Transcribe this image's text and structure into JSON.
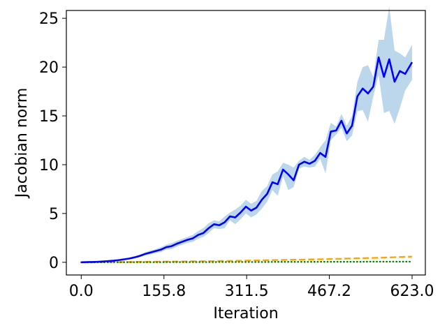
{
  "chart_data": {
    "type": "line",
    "title": "",
    "xlabel": "Iteration",
    "ylabel": "Jacobian norm",
    "xlim": [
      -28,
      648
    ],
    "ylim": [
      -1.3,
      25.8
    ],
    "grid": false,
    "legend": "none",
    "xticks": [
      0.0,
      155.8,
      311.5,
      467.2,
      623.0
    ],
    "xtick_labels": [
      "0.0",
      "155.8",
      "311.5",
      "467.2",
      "623.0"
    ],
    "yticks": [
      0,
      5,
      10,
      15,
      20,
      25
    ],
    "ytick_labels": [
      "0",
      "5",
      "10",
      "15",
      "20",
      "25"
    ],
    "x": [
      0,
      10,
      20,
      30,
      40,
      50,
      60,
      70,
      80,
      90,
      100,
      110,
      120,
      130,
      140,
      150,
      160,
      170,
      180,
      190,
      200,
      210,
      220,
      230,
      240,
      250,
      260,
      270,
      280,
      290,
      300,
      310,
      320,
      330,
      340,
      350,
      360,
      370,
      380,
      390,
      400,
      410,
      420,
      430,
      440,
      450,
      460,
      470,
      480,
      490,
      500,
      510,
      520,
      530,
      540,
      550,
      560,
      570,
      580,
      590,
      600,
      610,
      623
    ],
    "series": [
      {
        "color": "#0000ff",
        "style": "solid",
        "values": [
          0.0,
          0.02,
          0.03,
          0.05,
          0.08,
          0.12,
          0.16,
          0.22,
          0.3,
          0.38,
          0.5,
          0.65,
          0.85,
          1.0,
          1.15,
          1.3,
          1.55,
          1.65,
          1.9,
          2.1,
          2.3,
          2.45,
          2.8,
          3.0,
          3.5,
          3.9,
          3.8,
          4.1,
          4.7,
          4.6,
          5.1,
          5.7,
          5.3,
          5.6,
          6.4,
          7.0,
          8.2,
          8.0,
          9.5,
          9.0,
          8.4,
          10.0,
          10.3,
          10.1,
          10.4,
          11.2,
          10.8,
          13.4,
          13.5,
          14.5,
          13.2,
          14.0,
          17.0,
          17.8,
          17.3,
          18.0,
          21.0,
          19.0,
          20.8,
          18.5,
          19.6,
          19.3,
          20.5
        ],
        "band_upper": [
          0.0,
          0.03,
          0.05,
          0.07,
          0.1,
          0.15,
          0.2,
          0.27,
          0.36,
          0.45,
          0.6,
          0.78,
          1.0,
          1.2,
          1.35,
          1.55,
          1.8,
          1.95,
          2.2,
          2.4,
          2.6,
          2.8,
          3.2,
          3.5,
          4.0,
          4.3,
          4.2,
          4.7,
          5.1,
          5.4,
          5.8,
          6.4,
          6.0,
          6.3,
          7.3,
          7.8,
          9.0,
          9.3,
          10.2,
          10.0,
          9.7,
          10.4,
          10.8,
          10.5,
          11.0,
          11.8,
          12.5,
          14.3,
          13.9,
          15.2,
          14.0,
          15.0,
          18.5,
          20.0,
          20.2,
          19.0,
          22.8,
          22.8,
          26.2,
          21.7,
          21.4,
          21.0,
          22.3
        ],
        "band_lower": [
          0.0,
          0.01,
          0.01,
          0.03,
          0.06,
          0.09,
          0.12,
          0.17,
          0.24,
          0.31,
          0.4,
          0.52,
          0.7,
          0.8,
          0.95,
          1.05,
          1.3,
          1.35,
          1.6,
          1.8,
          2.0,
          2.1,
          2.4,
          2.6,
          3.0,
          3.5,
          3.4,
          3.5,
          4.3,
          3.9,
          4.4,
          5.0,
          4.6,
          4.9,
          5.5,
          6.2,
          7.4,
          6.8,
          8.8,
          7.4,
          7.7,
          9.6,
          9.8,
          9.7,
          9.8,
          10.6,
          9.1,
          12.5,
          13.1,
          13.8,
          12.4,
          13.0,
          15.5,
          15.6,
          14.4,
          17.0,
          19.2,
          15.3,
          15.5,
          14.2,
          15.8,
          17.6,
          18.7
        ]
      },
      {
        "color": "#ffa500",
        "style": "dashed",
        "values": [
          0.0,
          0.0,
          0.0,
          0.01,
          0.01,
          0.02,
          0.02,
          0.02,
          0.03,
          0.03,
          0.04,
          0.04,
          0.05,
          0.05,
          0.06,
          0.06,
          0.07,
          0.07,
          0.08,
          0.08,
          0.09,
          0.1,
          0.1,
          0.11,
          0.11,
          0.12,
          0.13,
          0.13,
          0.14,
          0.15,
          0.16,
          0.17,
          0.18,
          0.19,
          0.2,
          0.21,
          0.22,
          0.23,
          0.24,
          0.25,
          0.26,
          0.27,
          0.28,
          0.29,
          0.3,
          0.31,
          0.32,
          0.34,
          0.35,
          0.36,
          0.38,
          0.39,
          0.41,
          0.42,
          0.44,
          0.45,
          0.47,
          0.48,
          0.5,
          0.52,
          0.54,
          0.56,
          0.58
        ]
      },
      {
        "color": "#008000",
        "style": "dotted",
        "values": [
          0.0,
          0.0,
          0.0,
          0.0,
          0.0,
          0.0,
          0.01,
          0.01,
          0.01,
          0.01,
          0.01,
          0.01,
          0.01,
          0.01,
          0.01,
          0.01,
          0.02,
          0.02,
          0.02,
          0.02,
          0.02,
          0.02,
          0.02,
          0.02,
          0.02,
          0.02,
          0.03,
          0.03,
          0.03,
          0.03,
          0.03,
          0.03,
          0.03,
          0.03,
          0.03,
          0.03,
          0.04,
          0.04,
          0.04,
          0.04,
          0.04,
          0.04,
          0.04,
          0.04,
          0.04,
          0.05,
          0.05,
          0.05,
          0.05,
          0.05,
          0.05,
          0.05,
          0.05,
          0.05,
          0.06,
          0.06,
          0.06,
          0.06,
          0.06,
          0.06,
          0.06,
          0.06,
          0.06
        ]
      }
    ],
    "band_color": "#a6c9e4"
  }
}
